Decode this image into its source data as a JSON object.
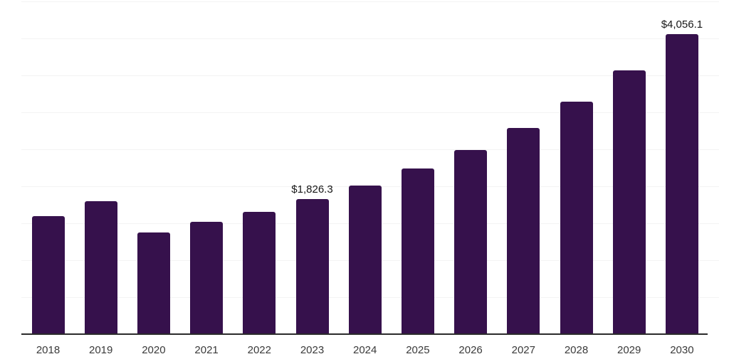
{
  "colors": {
    "background": "#ffffff",
    "bar": "#36114C",
    "axis_line": "#2b2b2b",
    "gridline": "#f3f3f3",
    "tick_label": "#3a3a3a",
    "value_label": "#161616"
  },
  "chart_data": {
    "type": "bar",
    "title": "",
    "xlabel": "",
    "ylabel": "",
    "categories": [
      "2018",
      "2019",
      "2020",
      "2021",
      "2022",
      "2023",
      "2024",
      "2025",
      "2026",
      "2027",
      "2028",
      "2029",
      "2030"
    ],
    "values": [
      1600,
      1800,
      1380,
      1515,
      1650,
      1826.3,
      2010,
      2240,
      2490,
      2790,
      3145,
      3565,
      4056.1
    ],
    "data_labels": [
      null,
      null,
      null,
      null,
      null,
      "$1,826.3",
      null,
      null,
      null,
      null,
      null,
      null,
      "$4,056.1"
    ],
    "ylim": [
      0,
      4500
    ],
    "gridline_step": 500,
    "grid": "horizontal-only",
    "y_axis_tick_labels_visible": false,
    "legend": "none"
  }
}
